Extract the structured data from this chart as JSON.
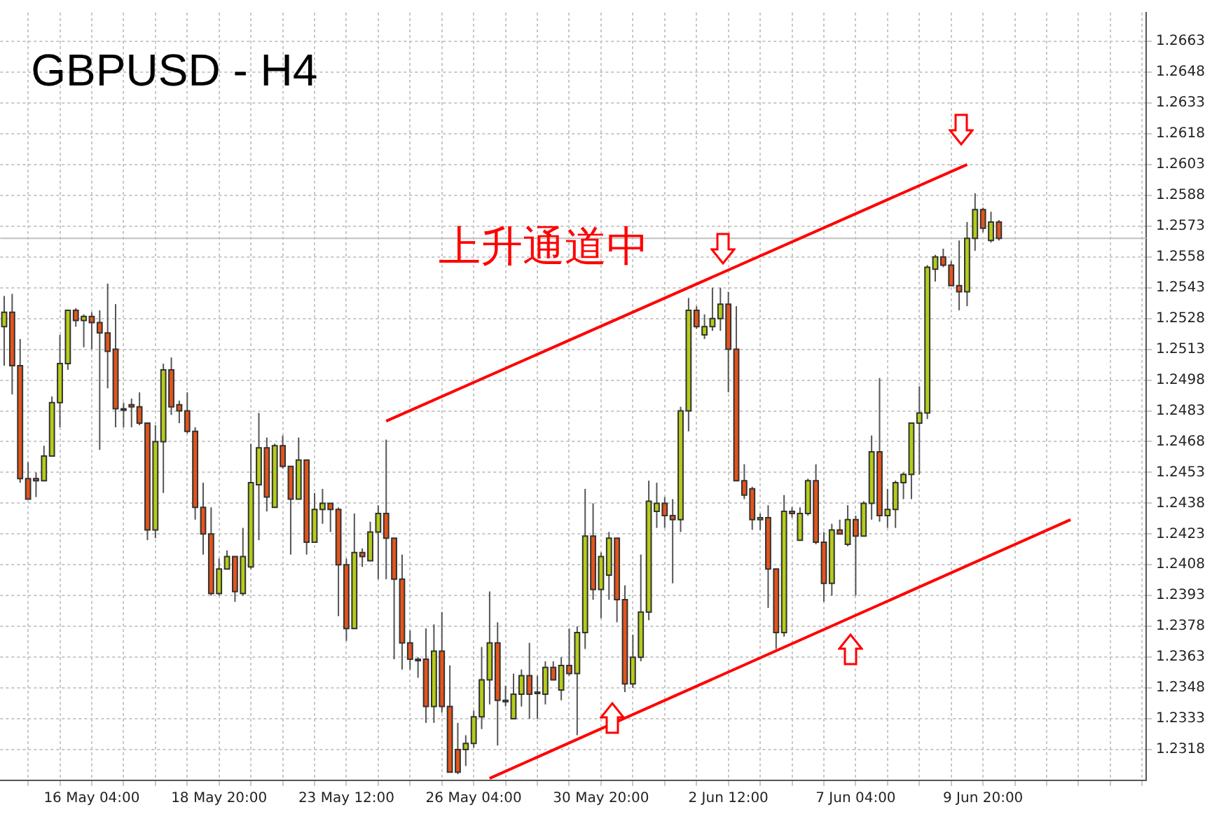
{
  "chart_data": {
    "type": "candlestick",
    "title": "GBPUSD - H4",
    "categories": [
      null,
      null,
      null,
      null,
      null,
      null,
      null,
      null,
      null,
      null,
      null,
      "16 May 04:00",
      null,
      null,
      null,
      null,
      null,
      null,
      null,
      null,
      null,
      null,
      null,
      null,
      null,
      null,
      null,
      "18 May 20:00",
      null,
      null,
      null,
      null,
      null,
      null,
      null,
      null,
      null,
      null,
      null,
      null,
      null,
      null,
      null,
      "23 May 12:00",
      null,
      null,
      null,
      null,
      null,
      null,
      null,
      null,
      null,
      null,
      null,
      null,
      null,
      null,
      null,
      "26 May 04:00",
      null,
      null,
      null,
      null,
      null,
      null,
      null,
      null,
      null,
      null,
      null,
      null,
      null,
      null,
      null,
      "30 May 20:00",
      null,
      null,
      null,
      null,
      null,
      null,
      null,
      null,
      null,
      null,
      null,
      null,
      null,
      null,
      null,
      "2 Jun 12:00",
      null,
      null,
      null,
      null,
      null,
      null,
      null,
      null,
      null,
      null,
      null,
      null,
      null,
      null,
      null,
      "7 Jun 04:00",
      null,
      null,
      null,
      null,
      null,
      null,
      null,
      null,
      null,
      null,
      null,
      null,
      null,
      null,
      null,
      "9 Jun 20:00",
      null,
      null,
      null,
      null,
      null,
      null,
      null,
      null,
      null,
      null,
      null,
      null,
      null,
      null,
      null,
      null,
      null,
      null,
      null,
      null
    ],
    "ohlc": [
      [
        1.2524,
        1.2539,
        1.2505,
        1.2531
      ],
      [
        1.2531,
        1.254,
        1.2491,
        1.2505
      ],
      [
        1.2505,
        1.2518,
        1.2448,
        1.245
      ],
      [
        1.245,
        1.2458,
        1.244,
        1.244
      ],
      [
        1.245,
        1.2453,
        1.2441,
        1.2449
      ],
      [
        1.2449,
        1.2466,
        1.2449,
        1.2461
      ],
      [
        1.2461,
        1.249,
        1.2461,
        1.2487
      ],
      [
        1.2487,
        1.252,
        1.2475,
        1.2506
      ],
      [
        1.2506,
        1.2532,
        1.2503,
        1.2532
      ],
      [
        1.2532,
        1.2533,
        1.2524,
        1.2527
      ],
      [
        1.2527,
        1.253,
        1.2514,
        1.2529
      ],
      [
        1.2529,
        1.2531,
        1.2513,
        1.2526
      ],
      [
        1.2526,
        1.2532,
        1.2464,
        1.2521
      ],
      [
        1.2521,
        1.2545,
        1.2494,
        1.2512
      ],
      [
        1.2513,
        1.2535,
        1.2475,
        1.2484
      ],
      [
        1.2484,
        1.2487,
        1.2475,
        1.2484
      ],
      [
        1.2486,
        1.2489,
        1.2475,
        1.2485
      ],
      [
        1.2485,
        1.2492,
        1.2476,
        1.2477
      ],
      [
        1.2477,
        1.2477,
        1.242,
        1.2425
      ],
      [
        1.2425,
        1.2476,
        1.2421,
        1.2468
      ],
      [
        1.2468,
        1.2506,
        1.2443,
        1.2503
      ],
      [
        1.2503,
        1.2509,
        1.2481,
        1.2485
      ],
      [
        1.2486,
        1.2488,
        1.2477,
        1.2483
      ],
      [
        1.2483,
        1.2492,
        1.2472,
        1.2473
      ],
      [
        1.2473,
        1.2475,
        1.243,
        1.2436
      ],
      [
        1.2436,
        1.2448,
        1.2413,
        1.2423
      ],
      [
        1.2423,
        1.2436,
        1.2393,
        1.2394
      ],
      [
        1.2394,
        1.2411,
        1.2393,
        1.2406
      ],
      [
        1.2406,
        1.2415,
        1.2406,
        1.2412
      ],
      [
        1.2412,
        1.2412,
        1.239,
        1.2395
      ],
      [
        1.2394,
        1.2426,
        1.2393,
        1.2412
      ],
      [
        1.2407,
        1.2467,
        1.2406,
        1.2448
      ],
      [
        1.2447,
        1.2482,
        1.242,
        1.2465
      ],
      [
        1.2465,
        1.247,
        1.2434,
        1.2441
      ],
      [
        1.2436,
        1.2467,
        1.2436,
        1.2466
      ],
      [
        1.2466,
        1.2471,
        1.2455,
        1.2456
      ],
      [
        1.2456,
        1.2456,
        1.2413,
        1.244
      ],
      [
        1.244,
        1.247,
        1.244,
        1.2459
      ],
      [
        1.2459,
        1.2459,
        1.2413,
        1.2419
      ],
      [
        1.2419,
        1.2443,
        1.2419,
        1.2435
      ],
      [
        1.2435,
        1.2445,
        1.2428,
        1.2438
      ],
      [
        1.2438,
        1.2438,
        1.2424,
        1.2435
      ],
      [
        1.2435,
        1.2436,
        1.2383,
        1.2408
      ],
      [
        1.2408,
        1.2411,
        1.2371,
        1.2377
      ],
      [
        1.2377,
        1.2433,
        1.2377,
        1.2414
      ],
      [
        1.2414,
        1.2416,
        1.2407,
        1.2412
      ],
      [
        1.241,
        1.2429,
        1.241,
        1.2424
      ],
      [
        1.2424,
        1.2437,
        1.2401,
        1.2433
      ],
      [
        1.2433,
        1.2469,
        1.2401,
        1.2421
      ],
      [
        1.2421,
        1.2421,
        1.2362,
        1.2401
      ],
      [
        1.2401,
        1.2413,
        1.2357,
        1.237
      ],
      [
        1.237,
        1.2376,
        1.2357,
        1.2362
      ],
      [
        1.2362,
        1.2363,
        1.2353,
        1.2362
      ],
      [
        1.2362,
        1.2377,
        1.2331,
        1.2339
      ],
      [
        1.2339,
        1.2379,
        1.2331,
        1.2366
      ],
      [
        1.2366,
        1.2385,
        1.2336,
        1.2339
      ],
      [
        1.2339,
        1.2359,
        1.2307,
        1.2307
      ],
      [
        1.2318,
        1.2331,
        1.2306,
        1.2307
      ],
      [
        1.2318,
        1.2325,
        1.231,
        1.2321
      ],
      [
        1.2321,
        1.2337,
        1.2319,
        1.2334
      ],
      [
        1.2334,
        1.2368,
        1.2328,
        1.2352
      ],
      [
        1.2352,
        1.2395,
        1.234,
        1.237
      ],
      [
        1.237,
        1.238,
        1.232,
        1.2342
      ],
      [
        1.2342,
        1.2349,
        1.2339,
        1.2342
      ],
      [
        1.2333,
        1.2355,
        1.2333,
        1.2345
      ],
      [
        1.2345,
        1.2357,
        1.2339,
        1.2354
      ],
      [
        1.2354,
        1.237,
        1.2333,
        1.2345
      ],
      [
        1.2346,
        1.2354,
        1.2333,
        1.2346
      ],
      [
        1.2345,
        1.2361,
        1.234,
        1.2358
      ],
      [
        1.2358,
        1.2361,
        1.2352,
        1.2352
      ],
      [
        1.2347,
        1.2363,
        1.2342,
        1.2359
      ],
      [
        1.2359,
        1.2377,
        1.2354,
        1.2355
      ],
      [
        1.2355,
        1.2378,
        1.2325,
        1.2375
      ],
      [
        1.2375,
        1.2445,
        1.2367,
        1.2422
      ],
      [
        1.2422,
        1.2438,
        1.2391,
        1.2396
      ],
      [
        1.2396,
        1.2414,
        1.2382,
        1.2412
      ],
      [
        1.2403,
        1.2424,
        1.2391,
        1.2421
      ],
      [
        1.2421,
        1.2421,
        1.238,
        1.2391
      ],
      [
        1.2391,
        1.2398,
        1.2346,
        1.235
      ],
      [
        1.235,
        1.2374,
        1.2348,
        1.2363
      ],
      [
        1.2363,
        1.2413,
        1.2361,
        1.2385
      ],
      [
        1.2385,
        1.2449,
        1.2381,
        1.2439
      ],
      [
        1.2434,
        1.2448,
        1.2426,
        1.2438
      ],
      [
        1.2438,
        1.2441,
        1.2426,
        1.2432
      ],
      [
        1.2432,
        1.244,
        1.2399,
        1.243
      ],
      [
        1.243,
        1.2485,
        1.2424,
        1.2483
      ],
      [
        1.2483,
        1.2538,
        1.2473,
        1.2532
      ],
      [
        1.2532,
        1.2534,
        1.2523,
        1.2524
      ],
      [
        1.252,
        1.253,
        1.2518,
        1.2524
      ],
      [
        1.2524,
        1.2543,
        1.2522,
        1.2528
      ],
      [
        1.2528,
        1.2543,
        1.2522,
        1.2535
      ],
      [
        1.2535,
        1.2541,
        1.2492,
        1.2513
      ],
      [
        1.2513,
        1.2534,
        1.2449,
        1.2449
      ],
      [
        1.2449,
        1.2457,
        1.244,
        1.2442
      ],
      [
        1.2445,
        1.2446,
        1.2425,
        1.243
      ],
      [
        1.243,
        1.2433,
        1.2425,
        1.2431
      ],
      [
        1.2431,
        1.2437,
        1.2387,
        1.2406
      ],
      [
        1.2406,
        1.2406,
        1.2367,
        1.2375
      ],
      [
        1.2375,
        1.2442,
        1.2373,
        1.2434
      ],
      [
        1.2434,
        1.2436,
        1.2431,
        1.2433
      ],
      [
        1.242,
        1.2436,
        1.242,
        1.2433
      ],
      [
        1.2433,
        1.245,
        1.2432,
        1.2449
      ],
      [
        1.2449,
        1.2457,
        1.2418,
        1.2419
      ],
      [
        1.2419,
        1.2424,
        1.239,
        1.2399
      ],
      [
        1.2399,
        1.2428,
        1.2393,
        1.2425
      ],
      [
        1.2425,
        1.243,
        1.2423,
        1.2423
      ],
      [
        1.2418,
        1.2437,
        1.2417,
        1.243
      ],
      [
        1.243,
        1.2432,
        1.2393,
        1.2422
      ],
      [
        1.2422,
        1.2439,
        1.2422,
        1.2438
      ],
      [
        1.2438,
        1.2471,
        1.243,
        1.2463
      ],
      [
        1.2463,
        1.2499,
        1.2429,
        1.2432
      ],
      [
        1.2432,
        1.2445,
        1.2426,
        1.2435
      ],
      [
        1.2435,
        1.2449,
        1.2426,
        1.2448
      ],
      [
        1.2448,
        1.2453,
        1.244,
        1.2452
      ],
      [
        1.2452,
        1.2477,
        1.244,
        1.2477
      ],
      [
        1.2477,
        1.2495,
        1.2452,
        1.2482
      ],
      [
        1.2482,
        1.2554,
        1.2479,
        1.2553
      ],
      [
        1.2552,
        1.2559,
        1.2546,
        1.2558
      ],
      [
        1.2558,
        1.2562,
        1.2553,
        1.2554
      ],
      [
        1.2554,
        1.2556,
        1.2544,
        1.2544
      ],
      [
        1.2544,
        1.2566,
        1.2532,
        1.2541
      ],
      [
        1.2541,
        1.2575,
        1.2534,
        1.2567
      ],
      [
        1.2567,
        1.2589,
        1.2561,
        1.2581
      ],
      [
        1.2581,
        1.2582,
        1.257,
        1.2572
      ],
      [
        1.2566,
        1.258,
        1.2565,
        1.2575
      ],
      [
        1.2575,
        1.2576,
        1.2566,
        1.2567
      ],
      null,
      null,
      null,
      null,
      null,
      null,
      null,
      null,
      null,
      null,
      null,
      null,
      null,
      null,
      null,
      null,
      null,
      null
    ],
    "colors": [
      "#b5cc18",
      "#e4541b",
      "#e4541b",
      "#e4541b",
      "#e4541b",
      "#b5cc18",
      "#b5cc18",
      "#b5cc18",
      "#b5cc18",
      "#e4541b",
      "#b5cc18",
      "#e4541b",
      "#e4541b",
      "#e4541b",
      "#e4541b",
      "#e4541b",
      "#e4541b",
      "#e4541b",
      "#e4541b",
      "#b5cc18",
      "#b5cc18",
      "#e4541b",
      "#e4541b",
      "#e4541b",
      "#e4541b",
      "#e4541b",
      "#e4541b",
      "#b5cc18",
      "#b5cc18",
      "#e4541b",
      "#b5cc18",
      "#b5cc18",
      "#b5cc18",
      "#e4541b",
      "#b5cc18",
      "#e4541b",
      "#e4541b",
      "#b5cc18",
      "#e4541b",
      "#b5cc18",
      "#b5cc18",
      "#e4541b",
      "#e4541b",
      "#e4541b",
      "#b5cc18",
      "#e4541b",
      "#b5cc18",
      "#b5cc18",
      "#e4541b",
      "#e4541b",
      "#e4541b",
      "#e4541b",
      "#e4541b",
      "#e4541b",
      "#b5cc18",
      "#e4541b",
      "#e4541b",
      "#e4541b",
      "#b5cc18",
      "#b5cc18",
      "#b5cc18",
      "#b5cc18",
      "#e4541b",
      "#e4541b",
      "#b5cc18",
      "#b5cc18",
      "#e4541b",
      "#e4541b",
      "#b5cc18",
      "#e4541b",
      "#b5cc18",
      "#e4541b",
      "#b5cc18",
      "#b5cc18",
      "#e4541b",
      "#b5cc18",
      "#b5cc18",
      "#e4541b",
      "#e4541b",
      "#b5cc18",
      "#b5cc18",
      "#b5cc18",
      "#b5cc18",
      "#e4541b",
      "#e4541b",
      "#b5cc18",
      "#b5cc18",
      "#e4541b",
      "#b5cc18",
      "#b5cc18",
      "#b5cc18",
      "#e4541b",
      "#e4541b",
      "#e4541b",
      "#e4541b",
      "#b5cc18",
      "#e4541b",
      "#e4541b",
      "#b5cc18",
      "#e4541b",
      "#b5cc18",
      "#b5cc18",
      "#e4541b",
      "#e4541b",
      "#b5cc18",
      "#e4541b",
      "#b5cc18",
      "#e4541b",
      "#b5cc18",
      "#b5cc18",
      "#e4541b",
      "#b5cc18",
      "#b5cc18",
      "#b5cc18",
      "#b5cc18",
      "#b5cc18",
      "#b5cc18",
      "#b5cc18",
      "#e4541b",
      "#e4541b",
      "#e4541b",
      "#b5cc18",
      "#b5cc18",
      "#e4541b",
      "#b5cc18",
      "#e4541b",
      null,
      null,
      null,
      null,
      null,
      null,
      null,
      null,
      null,
      null,
      null,
      null,
      null,
      null,
      null,
      null,
      null,
      null
    ],
    "series": [
      {
        "type": "line",
        "color": "#ff0000",
        "values": [
          null,
          null,
          null,
          null,
          null,
          null,
          null,
          null,
          null,
          null,
          null,
          null,
          null,
          null,
          null,
          null,
          null,
          null,
          null,
          null,
          null,
          null,
          null,
          null,
          null,
          null,
          null,
          null,
          null,
          null,
          null,
          null,
          null,
          null,
          null,
          null,
          null,
          null,
          null,
          null,
          null,
          null,
          null,
          null,
          null,
          null,
          null,
          null,
          1.2478,
          null,
          null,
          null,
          null,
          null,
          null,
          null,
          null,
          null,
          null,
          null,
          null,
          null,
          null,
          null,
          null,
          null,
          null,
          null,
          null,
          null,
          null,
          null,
          null,
          null,
          null,
          null,
          null,
          null,
          null,
          null,
          null,
          null,
          null,
          null,
          null,
          null,
          null,
          null,
          null,
          null,
          null,
          null,
          null,
          null,
          null,
          null,
          null,
          null,
          null,
          null,
          null,
          null,
          null,
          null,
          null,
          null,
          null,
          null,
          null,
          null,
          null,
          null,
          null,
          null,
          null,
          null,
          null,
          null,
          null,
          null,
          null,
          1.2603,
          null,
          null,
          null,
          null,
          null,
          null,
          null,
          null,
          null,
          null,
          null,
          null,
          null,
          null,
          null,
          null,
          null,
          null,
          null,
          null,
          null,
          null
        ]
      },
      {
        "type": "line",
        "color": "#ff0000",
        "values": [
          null,
          null,
          null,
          null,
          null,
          null,
          null,
          null,
          null,
          null,
          null,
          null,
          null,
          null,
          null,
          null,
          null,
          null,
          null,
          null,
          null,
          null,
          null,
          null,
          null,
          null,
          null,
          null,
          null,
          null,
          null,
          null,
          null,
          null,
          null,
          null,
          null,
          null,
          null,
          null,
          null,
          null,
          null,
          null,
          null,
          null,
          null,
          null,
          null,
          null,
          null,
          null,
          null,
          null,
          null,
          null,
          null,
          null,
          null,
          null,
          null,
          1.2304,
          null,
          null,
          null,
          null,
          null,
          null,
          null,
          null,
          null,
          null,
          null,
          null,
          null,
          null,
          null,
          null,
          null,
          null,
          null,
          null,
          null,
          null,
          null,
          null,
          null,
          null,
          null,
          null,
          null,
          null,
          null,
          null,
          null,
          null,
          null,
          null,
          null,
          null,
          null,
          null,
          null,
          null,
          null,
          null,
          null,
          null,
          null,
          null,
          null,
          null,
          null,
          null,
          null,
          null,
          null,
          null,
          null,
          null,
          null,
          null,
          null,
          null,
          null,
          null,
          null,
          null,
          null,
          null,
          null,
          null,
          null,
          null,
          1.243,
          null,
          null,
          null,
          null,
          null,
          null,
          null,
          null,
          null
        ]
      }
    ],
    "ylim": [
      1.2303,
      1.2677
    ],
    "yticks": [
      1.2318,
      1.2333,
      1.2348,
      1.2363,
      1.2378,
      1.2393,
      1.2408,
      1.2423,
      1.2438,
      1.2453,
      1.2468,
      1.2483,
      1.2498,
      1.2513,
      1.2528,
      1.2543,
      1.2558,
      1.2573,
      1.2588,
      1.2603,
      1.2618,
      1.2633,
      1.2648,
      1.2663
    ],
    "ref_lines": [
      {
        "axis": "y",
        "value": 1.2567,
        "color": "#c0c0c0"
      }
    ],
    "annotations": [
      "上升通道中"
    ],
    "grid": true
  }
}
